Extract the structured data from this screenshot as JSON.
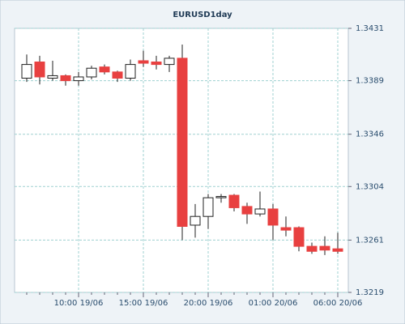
{
  "chart_data": {
    "type": "candlestick",
    "title": "EURUSD1day",
    "categories": [
      null,
      null,
      null,
      null,
      "10:00 19/06",
      null,
      null,
      null,
      null,
      "15:00 19/06",
      null,
      null,
      null,
      null,
      "20:00 19/06",
      null,
      null,
      null,
      null,
      "01:00 20/06",
      null,
      null,
      null,
      null,
      "06:00 20/06"
    ],
    "series": [
      {
        "up_color": "#ffffff",
        "down_color": "#e84040",
        "open": [
          1.3391,
          1.3404,
          1.3391,
          1.3393,
          1.3389,
          1.3392,
          1.34,
          1.3396,
          1.3391,
          1.3405,
          1.3404,
          1.3402,
          1.3407,
          1.3273,
          1.328,
          1.3295,
          1.3297,
          1.3288,
          1.3282,
          1.3286,
          1.3271,
          1.3271,
          1.3256,
          1.3256,
          1.3254
        ],
        "high": [
          1.341,
          1.3409,
          1.3405,
          1.3394,
          1.3396,
          1.3401,
          1.3402,
          1.3397,
          1.3406,
          1.3413,
          1.3409,
          1.3409,
          1.3418,
          1.329,
          1.3298,
          1.3298,
          1.3298,
          1.3291,
          1.33,
          1.329,
          1.328,
          1.3272,
          1.3259,
          1.3264,
          1.3267
        ],
        "low": [
          1.3388,
          1.3386,
          1.3389,
          1.3385,
          1.3385,
          1.339,
          1.3394,
          1.3388,
          1.3389,
          1.34,
          1.3398,
          1.3396,
          1.3261,
          1.3263,
          1.327,
          1.3291,
          1.3284,
          1.3274,
          1.328,
          1.3261,
          1.3264,
          1.3252,
          1.325,
          1.3249,
          1.325
        ],
        "close": [
          1.3402,
          1.3392,
          1.3393,
          1.3389,
          1.3392,
          1.3399,
          1.3396,
          1.3391,
          1.3402,
          1.3403,
          1.3402,
          1.3407,
          1.3272,
          1.328,
          1.3295,
          1.3296,
          1.3287,
          1.3282,
          1.3286,
          1.3273,
          1.3269,
          1.3256,
          1.3252,
          1.3253,
          1.3252
        ]
      }
    ],
    "ylim": [
      1.3219,
      1.3431
    ],
    "yticks": [
      1.3219,
      1.3261,
      1.3304,
      1.3346,
      1.3389,
      1.3431
    ],
    "grid": true
  }
}
